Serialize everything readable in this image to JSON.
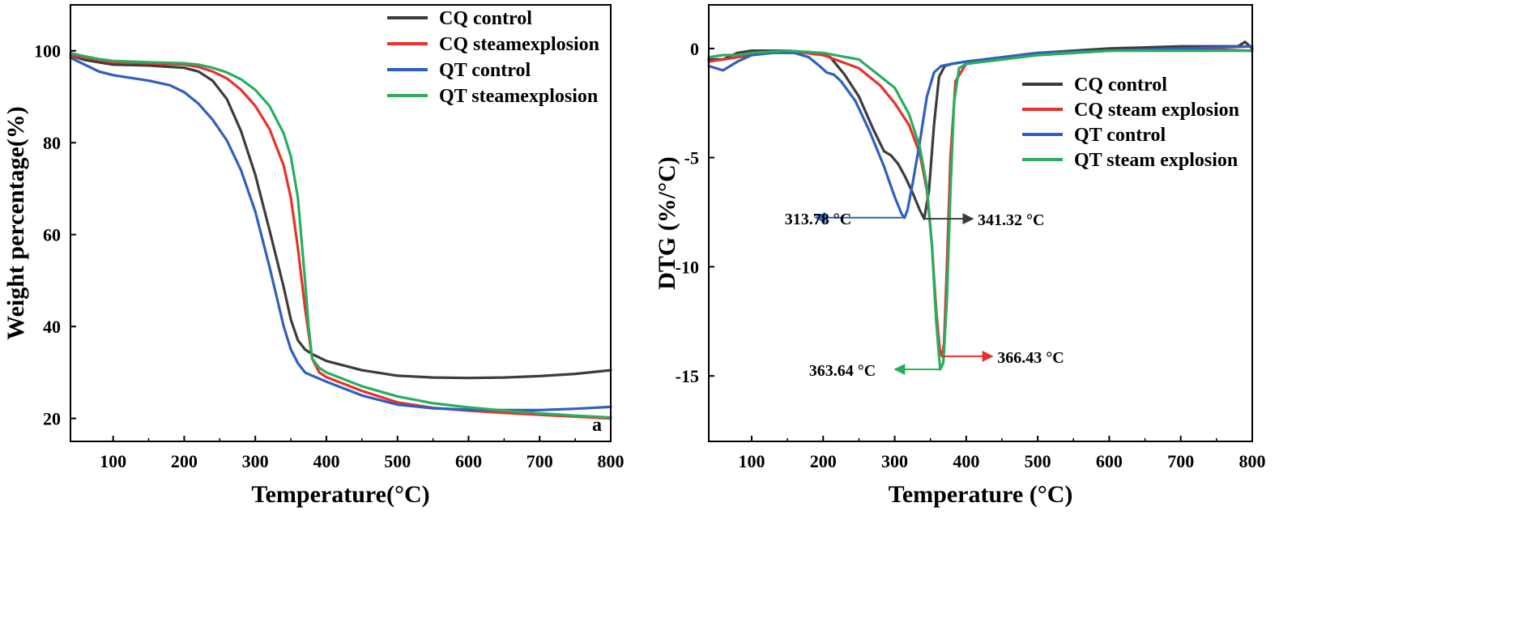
{
  "chart_data": [
    {
      "type": "line",
      "panel_label": "a",
      "xlabel": "Temperature(°C)",
      "ylabel": "Weight percentage(%)",
      "xlim": [
        40,
        800
      ],
      "ylim": [
        15,
        110
      ],
      "xticks": [
        100,
        200,
        300,
        400,
        500,
        600,
        700,
        800
      ],
      "xtick_labels": [
        "100",
        "200",
        "300",
        "400",
        "500",
        "600",
        "700",
        "800"
      ],
      "yticks": [
        20,
        40,
        60,
        80,
        100
      ],
      "ytick_labels": [
        "20",
        "40",
        "60",
        "80",
        "100"
      ],
      "legend_position": "top-right",
      "series": [
        {
          "name": "CQ control",
          "color": "#3c3c3c",
          "x": [
            40,
            60,
            80,
            100,
            150,
            200,
            220,
            240,
            260,
            280,
            300,
            320,
            340,
            350,
            360,
            370,
            380,
            400,
            450,
            500,
            550,
            600,
            650,
            700,
            750,
            800
          ],
          "y": [
            99,
            98,
            97.5,
            97,
            96.8,
            96.3,
            95.5,
            93.5,
            89.5,
            82.5,
            73,
            61,
            48.5,
            41.5,
            37,
            35,
            34,
            32.5,
            30.5,
            29.3,
            28.9,
            28.8,
            28.9,
            29.2,
            29.7,
            30.5
          ]
        },
        {
          "name": "CQ steamexplosion",
          "color": "#e8312a",
          "x": [
            40,
            60,
            80,
            100,
            150,
            200,
            220,
            240,
            260,
            280,
            300,
            320,
            340,
            350,
            360,
            370,
            380,
            390,
            400,
            450,
            500,
            550,
            600,
            650,
            700,
            750,
            800
          ],
          "y": [
            99,
            98.5,
            98,
            97.5,
            97.3,
            97,
            96.5,
            95.5,
            94,
            91.5,
            88,
            83,
            75,
            68,
            57,
            44,
            33,
            30,
            29,
            26,
            23.5,
            22.3,
            21.7,
            21.2,
            20.8,
            20.4,
            20
          ]
        },
        {
          "name": "QT control",
          "color": "#2f5fbf",
          "x": [
            40,
            60,
            80,
            100,
            150,
            180,
            200,
            220,
            240,
            260,
            280,
            300,
            320,
            340,
            350,
            360,
            370,
            380,
            400,
            450,
            500,
            550,
            600,
            650,
            700,
            750,
            800
          ],
          "y": [
            98.5,
            97,
            95.5,
            94.7,
            93.5,
            92.5,
            91,
            88.5,
            85,
            80.5,
            74,
            65,
            53,
            40,
            35,
            32,
            30,
            29.3,
            28,
            25,
            23,
            22.2,
            21.9,
            21.8,
            21.8,
            22.1,
            22.5
          ]
        },
        {
          "name": "QT steamexplosion",
          "color": "#27ae60",
          "x": [
            40,
            60,
            80,
            100,
            150,
            200,
            220,
            240,
            260,
            280,
            300,
            320,
            340,
            350,
            360,
            370,
            375,
            380,
            390,
            400,
            450,
            500,
            550,
            600,
            650,
            700,
            750,
            800
          ],
          "y": [
            99.5,
            98.8,
            98.2,
            97.8,
            97.5,
            97.3,
            97,
            96.3,
            95.3,
            93.8,
            91.5,
            88,
            82,
            77,
            68,
            50,
            40,
            33,
            31,
            30,
            27,
            24.8,
            23.3,
            22.4,
            21.7,
            21.1,
            20.6,
            20.2
          ]
        }
      ]
    },
    {
      "type": "line",
      "xlabel": "Temperature (°C)",
      "ylabel": "DTG (%/°C)",
      "xlim": [
        40,
        800
      ],
      "ylim": [
        -18,
        2
      ],
      "xticks": [
        100,
        200,
        300,
        400,
        500,
        600,
        700,
        800
      ],
      "xtick_labels": [
        "100",
        "200",
        "300",
        "400",
        "500",
        "600",
        "700",
        "800"
      ],
      "yticks": [
        -15,
        -10,
        -5,
        0
      ],
      "ytick_labels": [
        "-15",
        "-10",
        "-5",
        "0"
      ],
      "legend_position": "right",
      "series": [
        {
          "name": "CQ control",
          "color": "#3c3c3c",
          "x": [
            40,
            60,
            80,
            100,
            150,
            190,
            210,
            230,
            250,
            270,
            285,
            295,
            305,
            315,
            325,
            335,
            341.32,
            348,
            355,
            362,
            370,
            380,
            400,
            450,
            500,
            600,
            700,
            780,
            790,
            800
          ],
          "y": [
            -0.5,
            -0.5,
            -0.2,
            -0.1,
            -0.1,
            -0.2,
            -0.4,
            -1.2,
            -2.2,
            -3.7,
            -4.7,
            -4.9,
            -5.3,
            -5.9,
            -6.6,
            -7.4,
            -7.8,
            -6.5,
            -3.5,
            -1.3,
            -0.8,
            -0.7,
            -0.6,
            -0.4,
            -0.2,
            0,
            0.1,
            0.1,
            0.3,
            0
          ]
        },
        {
          "name": "CQ steam explosion",
          "color": "#e8312a",
          "x": [
            40,
            60,
            80,
            100,
            150,
            200,
            250,
            280,
            300,
            320,
            335,
            345,
            352,
            358,
            363,
            366.43,
            369,
            373,
            378,
            385,
            400,
            450,
            500,
            600,
            700,
            800
          ],
          "y": [
            -0.6,
            -0.5,
            -0.4,
            -0.3,
            -0.1,
            -0.3,
            -0.9,
            -1.7,
            -2.5,
            -3.5,
            -4.8,
            -6.5,
            -9,
            -12,
            -13.8,
            -14.1,
            -13.5,
            -10,
            -5,
            -1.5,
            -0.7,
            -0.5,
            -0.3,
            -0.1,
            0,
            -0.1
          ]
        },
        {
          "name": "QT control",
          "color": "#2f5fbf",
          "x": [
            40,
            60,
            80,
            100,
            130,
            160,
            180,
            195,
            205,
            215,
            225,
            245,
            265,
            285,
            300,
            310,
            313.78,
            318,
            325,
            335,
            345,
            355,
            365,
            380,
            400,
            450,
            500,
            600,
            700,
            800
          ],
          "y": [
            -0.8,
            -1,
            -0.6,
            -0.3,
            -0.2,
            -0.2,
            -0.4,
            -0.8,
            -1.1,
            -1.2,
            -1.5,
            -2.4,
            -3.8,
            -5.4,
            -6.8,
            -7.6,
            -7.75,
            -7.4,
            -6.2,
            -4.3,
            -2.2,
            -1.1,
            -0.8,
            -0.7,
            -0.6,
            -0.4,
            -0.2,
            -0.1,
            0,
            0.1
          ]
        },
        {
          "name": "QT steam explosion",
          "color": "#27ae60",
          "x": [
            40,
            60,
            80,
            100,
            150,
            200,
            250,
            300,
            320,
            335,
            345,
            352,
            358,
            363.64,
            368,
            373,
            378,
            383,
            390,
            400,
            450,
            500,
            600,
            700,
            800
          ],
          "y": [
            -0.4,
            -0.3,
            -0.3,
            -0.2,
            -0.1,
            -0.2,
            -0.5,
            -1.8,
            -3,
            -4.5,
            -6.3,
            -9,
            -12.5,
            -14.7,
            -14.4,
            -11.5,
            -6.5,
            -2.5,
            -0.9,
            -0.7,
            -0.5,
            -0.3,
            -0.1,
            -0.1,
            -0.1
          ]
        }
      ],
      "annotations": [
        {
          "text": "313.78 °C",
          "x": 313.78,
          "y": -7.75,
          "series": "QT control",
          "arrow": "left"
        },
        {
          "text": "341.32 °C",
          "x": 341.32,
          "y": -7.8,
          "series": "CQ control",
          "arrow": "right"
        },
        {
          "text": "366.43 °C",
          "x": 366.43,
          "y": -14.1,
          "series": "CQ steam explosion",
          "arrow": "right"
        },
        {
          "text": "363.64 °C",
          "x": 363.64,
          "y": -14.7,
          "series": "QT steam explosion",
          "arrow": "left"
        }
      ]
    }
  ]
}
